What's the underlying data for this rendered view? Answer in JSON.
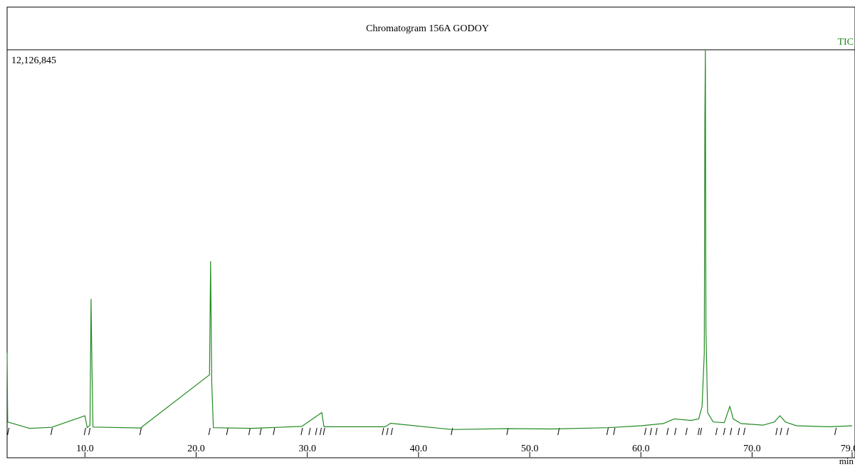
{
  "colors": {
    "trace": "#228b22",
    "axis": "#000000",
    "label_tic": "#228b22"
  },
  "chart_data": {
    "type": "line",
    "title": "Chromatogram 156A GODOY",
    "series_label": "TIC",
    "y_max_label": "12,126,845",
    "x_unit": "min",
    "xlim": [
      3.0,
      79.0
    ],
    "ylim": [
      0,
      12126845
    ],
    "x_ticks": [
      10.0,
      20.0,
      30.0,
      40.0,
      50.0,
      60.0,
      70.0,
      79.0
    ],
    "x_tick_labels": [
      "10.0",
      "20.0",
      "30.0",
      "40.0",
      "50.0",
      "60.0",
      "70.0",
      "79.0"
    ],
    "series": [
      {
        "values": [
          {
            "x": 3.0,
            "y": 2500000
          },
          {
            "x": 3.05,
            "y": 300000
          },
          {
            "x": 5.0,
            "y": 100000
          },
          {
            "x": 7.0,
            "y": 130000
          },
          {
            "x": 10.0,
            "y": 500000
          },
          {
            "x": 10.2,
            "y": 120000
          },
          {
            "x": 10.45,
            "y": 200000
          },
          {
            "x": 10.55,
            "y": 4200000
          },
          {
            "x": 10.62,
            "y": 2300000
          },
          {
            "x": 10.72,
            "y": 140000
          },
          {
            "x": 15.0,
            "y": 110000
          },
          {
            "x": 21.2,
            "y": 1800000
          },
          {
            "x": 21.3,
            "y": 5400000
          },
          {
            "x": 21.4,
            "y": 1600000
          },
          {
            "x": 21.55,
            "y": 120000
          },
          {
            "x": 25.0,
            "y": 100000
          },
          {
            "x": 29.5,
            "y": 160000
          },
          {
            "x": 31.3,
            "y": 600000
          },
          {
            "x": 31.5,
            "y": 150000
          },
          {
            "x": 37.0,
            "y": 150000
          },
          {
            "x": 37.5,
            "y": 260000
          },
          {
            "x": 43.0,
            "y": 60000
          },
          {
            "x": 48.0,
            "y": 90000
          },
          {
            "x": 52.0,
            "y": 80000
          },
          {
            "x": 57.0,
            "y": 120000
          },
          {
            "x": 58.0,
            "y": 140000
          },
          {
            "x": 60.0,
            "y": 180000
          },
          {
            "x": 62.0,
            "y": 250000
          },
          {
            "x": 63.0,
            "y": 400000
          },
          {
            "x": 64.5,
            "y": 350000
          },
          {
            "x": 65.2,
            "y": 400000
          },
          {
            "x": 65.5,
            "y": 800000
          },
          {
            "x": 65.7,
            "y": 2500000
          },
          {
            "x": 65.75,
            "y": 9900000
          },
          {
            "x": 65.8,
            "y": 12126845
          },
          {
            "x": 65.85,
            "y": 3300000
          },
          {
            "x": 66.0,
            "y": 600000
          },
          {
            "x": 66.5,
            "y": 300000
          },
          {
            "x": 67.5,
            "y": 280000
          },
          {
            "x": 68.0,
            "y": 800000
          },
          {
            "x": 68.3,
            "y": 400000
          },
          {
            "x": 69.0,
            "y": 250000
          },
          {
            "x": 71.0,
            "y": 200000
          },
          {
            "x": 72.0,
            "y": 300000
          },
          {
            "x": 72.5,
            "y": 500000
          },
          {
            "x": 73.0,
            "y": 300000
          },
          {
            "x": 74.0,
            "y": 180000
          },
          {
            "x": 77.0,
            "y": 150000
          },
          {
            "x": 79.0,
            "y": 180000
          }
        ]
      }
    ],
    "baseline_markers": [
      3.1,
      7.0,
      10.0,
      10.4,
      15.0,
      21.2,
      22.8,
      24.8,
      25.8,
      27.0,
      29.5,
      30.2,
      30.8,
      31.2,
      31.5,
      36.8,
      37.2,
      37.6,
      43.0,
      48.0,
      52.6,
      57.0,
      57.6,
      60.4,
      60.9,
      61.4,
      62.4,
      63.1,
      64.1,
      65.2,
      65.4,
      66.8,
      67.5,
      68.1,
      68.8,
      69.3,
      72.2,
      72.6,
      73.2,
      77.5
    ]
  }
}
